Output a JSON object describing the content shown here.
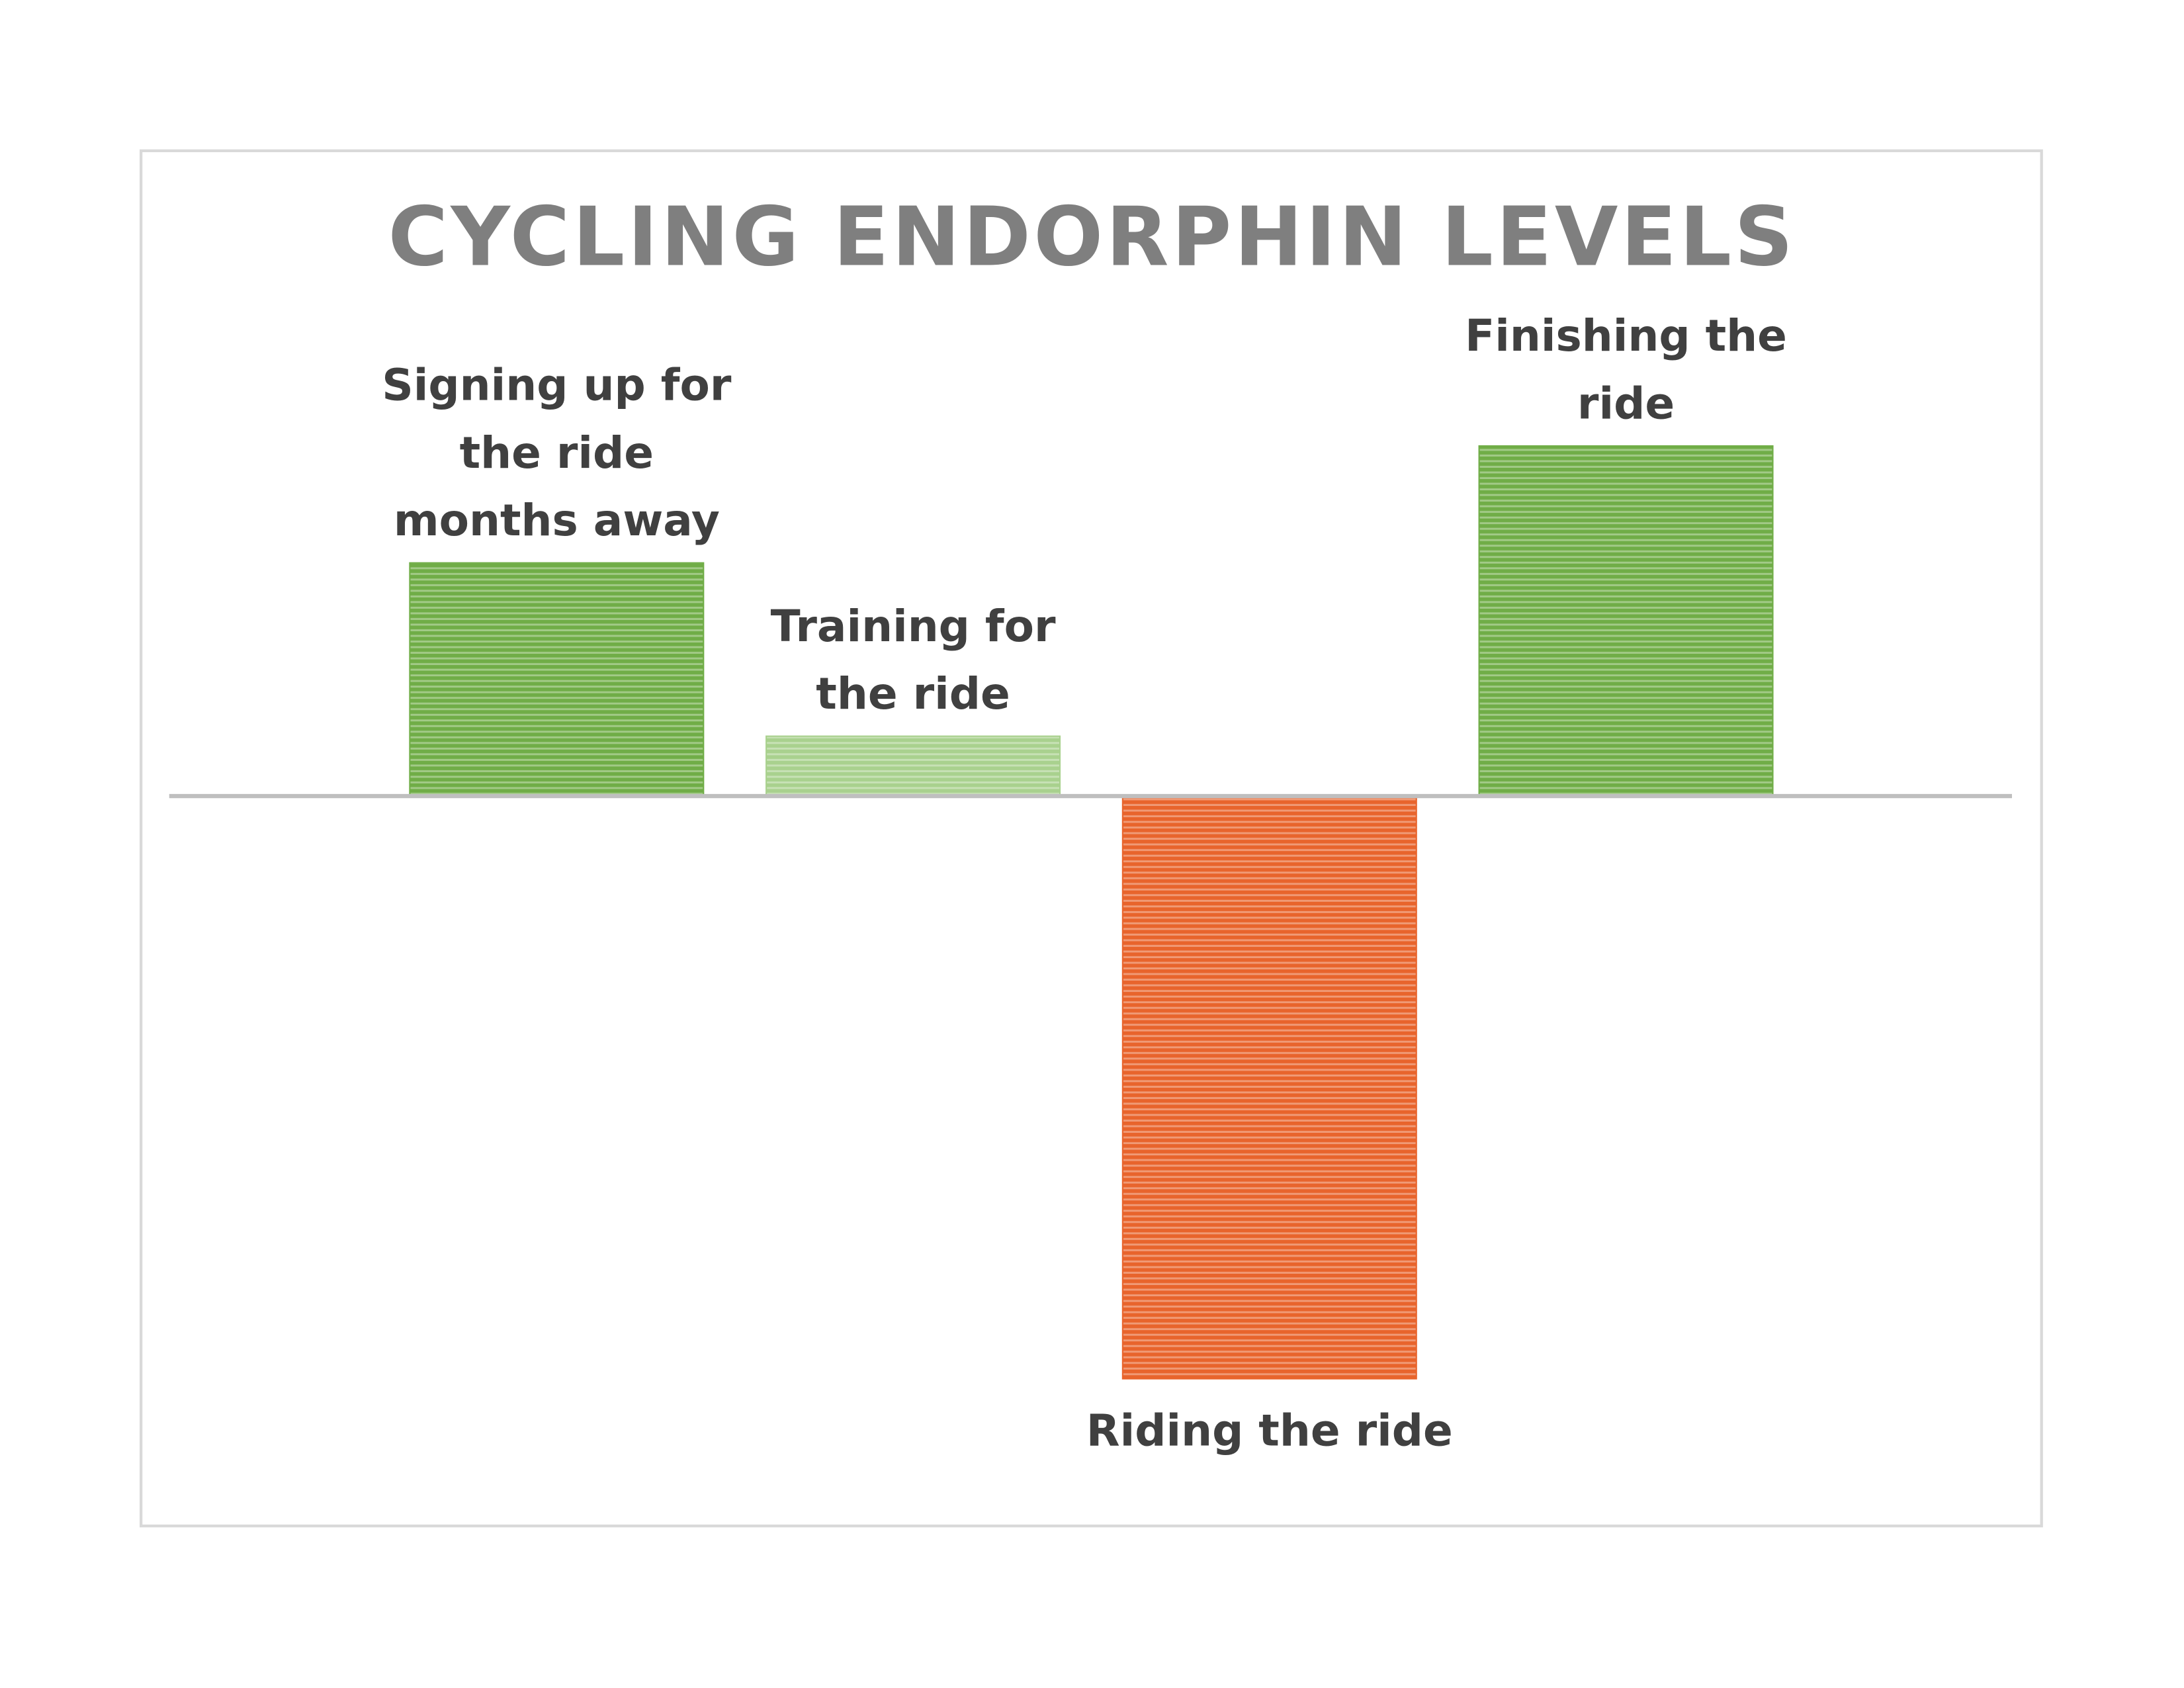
{
  "chart_data": {
    "type": "bar",
    "title": "CYCLING ENDORPHIN LEVELS",
    "categories": [
      "Signing up for the ride months away",
      "Training for the ride",
      "Riding the ride",
      "Finishing the ride"
    ],
    "values": [
      1.65,
      0.42,
      -4.13,
      2.48
    ],
    "colors": [
      "#70ad47",
      "#a9d18e",
      "#e8642c",
      "#70ad47"
    ],
    "ylim": [
      -4.8,
      3.5
    ]
  }
}
